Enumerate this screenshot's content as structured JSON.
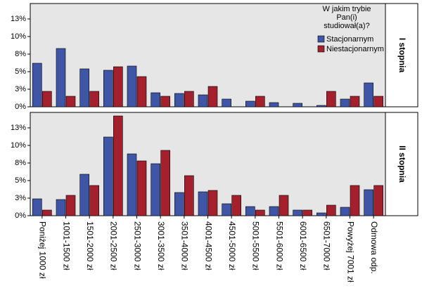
{
  "chart_data": {
    "type": "bar",
    "legend_title": "W jakim trybie Pan(i) studiował(a)?",
    "legend": "top-right",
    "grid": false,
    "categories": [
      "Poniżej 1000 zł",
      "1001-1500 zł",
      "1501-2000 zł",
      "2001-2500 zł",
      "2501-3000 zł",
      "3001-3500 zł",
      "3501-4000 zł",
      "4001-4500 zł",
      "4501-5000 zł",
      "5001-5500 zł",
      "5501-6000 zł",
      "6001-6500 zł",
      "6501-7000 zł",
      "Powyżej 7001 zł",
      "Odmowa odp."
    ],
    "ylim": [
      0,
      14.7
    ],
    "yticks": [
      {
        "value": 0,
        "label": "0%"
      },
      {
        "value": 2.5,
        "label": "3%"
      },
      {
        "value": 5,
        "label": "5%"
      },
      {
        "value": 7.5,
        "label": "8%"
      },
      {
        "value": 10,
        "label": "10%"
      },
      {
        "value": 12.5,
        "label": "13%"
      }
    ],
    "series": [
      {
        "name": "Stacjonarnym",
        "color": "#3f56a6"
      },
      {
        "name": "Niestacjonarnym",
        "color": "#a4202d"
      }
    ],
    "panels": [
      {
        "label": "I stopnia",
        "values": [
          [
            6.2,
            8.3,
            5.4,
            5.2,
            5.8,
            2.0,
            1.9,
            1.7,
            1.1,
            0.8,
            0.6,
            0.5,
            0.2,
            1.1,
            3.4
          ],
          [
            2.2,
            1.5,
            2.2,
            5.7,
            4.3,
            1.5,
            2.2,
            2.9,
            0,
            1.5,
            0,
            0,
            2.2,
            1.5,
            1.5
          ]
        ]
      },
      {
        "label": "II stopnia",
        "values": [
          [
            2.4,
            2.3,
            5.9,
            11.2,
            8.8,
            7.4,
            3.3,
            3.4,
            1.7,
            1.3,
            1.3,
            0.8,
            0.4,
            1.2,
            3.7
          ],
          [
            0.8,
            2.9,
            4.3,
            14.2,
            7.8,
            9.3,
            5.7,
            3.6,
            2.9,
            0.8,
            2.9,
            0.8,
            1.5,
            4.3,
            4.3
          ]
        ]
      }
    ]
  }
}
